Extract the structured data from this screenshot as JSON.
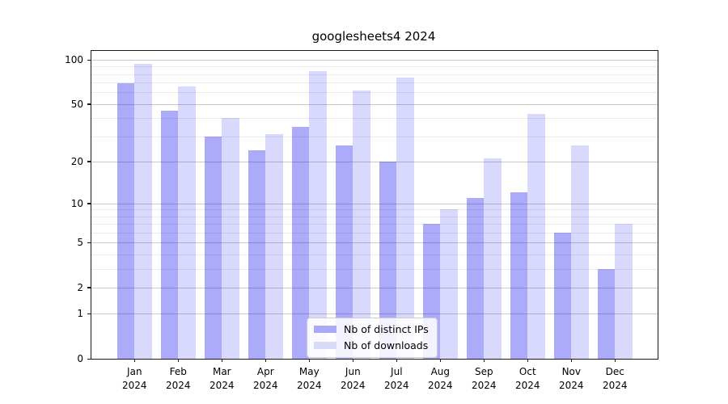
{
  "title": "googlesheets4 2024",
  "chart_data": {
    "type": "bar",
    "title": "googlesheets4 2024",
    "categories": [
      "Jan 2024",
      "Feb 2024",
      "Mar 2024",
      "Apr 2024",
      "May 2024",
      "Jun 2024",
      "Jul 2024",
      "Aug 2024",
      "Sep 2024",
      "Oct 2024",
      "Nov 2024",
      "Dec 2024"
    ],
    "series": [
      {
        "name": "Nb of distinct IPs",
        "color": "rgba(21,21,242,0.36)",
        "swatch": "#a9a9f8",
        "values": [
          69,
          45,
          30,
          24,
          35,
          26,
          20,
          7,
          11,
          12,
          6,
          3
        ]
      },
      {
        "name": "Nb of downloads",
        "color": "rgba(21,21,242,0.16)",
        "swatch": "#d9d9f8",
        "values": [
          94,
          66,
          40,
          31,
          84,
          62,
          76,
          9,
          21,
          43,
          26,
          7
        ]
      }
    ],
    "yscale": "log1p",
    "y_major_ticks": [
      0,
      1,
      2,
      5,
      10,
      20,
      50,
      100
    ],
    "y_minor_gridlines": [
      3,
      4,
      6,
      7,
      8,
      9,
      30,
      40,
      60,
      70,
      80,
      90
    ],
    "ylim": [
      0,
      115
    ],
    "grid": true,
    "legend_position": "lower center",
    "colors": {
      "grid_major": "#c9c9c9",
      "grid_minor": "#eaeaea",
      "spine": "#1a1a1a",
      "text": "#000000",
      "legend_border": "#cccccc"
    }
  }
}
